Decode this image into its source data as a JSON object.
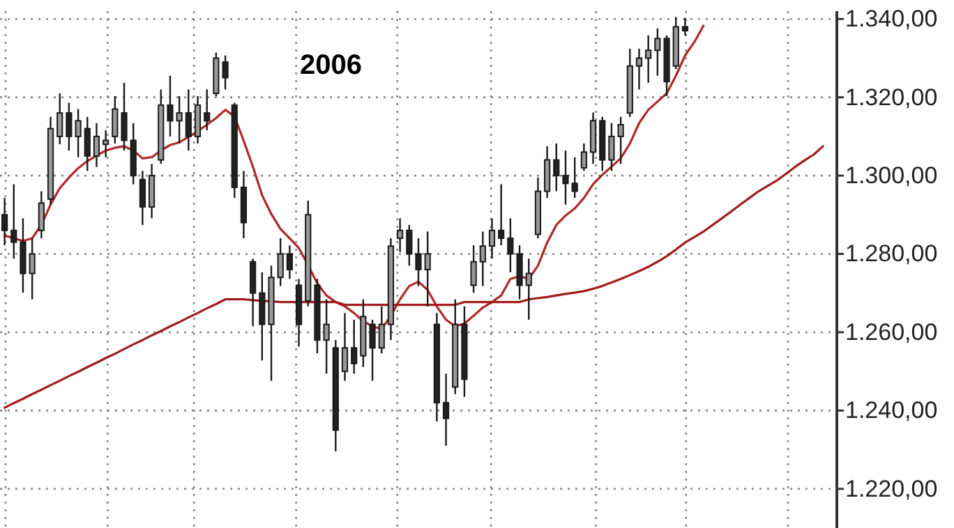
{
  "chart_data": {
    "type": "candlestick",
    "categories": [
      null,
      null,
      null,
      null,
      null,
      null,
      null,
      null,
      null,
      null,
      null,
      null,
      null,
      null,
      null,
      null,
      null,
      null,
      null,
      null,
      null,
      null,
      null,
      null,
      null,
      null,
      null,
      null,
      null,
      null,
      null,
      null,
      null,
      null,
      null,
      null,
      null,
      null,
      null,
      null,
      null,
      null,
      null,
      null,
      null,
      null,
      null,
      null,
      null,
      null,
      null,
      null,
      null,
      null,
      null,
      null,
      null,
      null,
      null,
      null,
      null,
      null,
      null,
      null,
      null,
      null,
      null,
      null,
      null,
      null,
      null,
      null,
      null,
      null,
      null,
      null,
      null,
      null,
      null,
      null,
      null,
      null,
      null,
      null,
      null,
      null,
      null,
      null,
      null,
      null,
      null
    ],
    "ohlc": [
      [
        1290,
        1294.3,
        1282.2,
        1286
      ],
      [
        1286,
        1297.8,
        1278.8,
        1283
      ],
      [
        1283,
        1289.1,
        1270.1,
        1275
      ],
      [
        1275,
        1284,
        1268.4,
        1280
      ],
      [
        1286,
        1296,
        1284,
        1293
      ],
      [
        1294,
        1315,
        1292.6,
        1312
      ],
      [
        1310,
        1321,
        1308,
        1316
      ],
      [
        1316,
        1318.6,
        1306.4,
        1310
      ],
      [
        1310,
        1317,
        1304.7,
        1314
      ],
      [
        1312,
        1315,
        1301.2,
        1305
      ],
      [
        1305,
        1313.4,
        1302.2,
        1310
      ],
      [
        1308,
        1311.6,
        1304.7,
        1309
      ],
      [
        1310,
        1320.3,
        1308.2,
        1317
      ],
      [
        1316,
        1323.7,
        1306.4,
        1309
      ],
      [
        1309,
        1313.4,
        1297.8,
        1300
      ],
      [
        1299,
        1301.2,
        1287.4,
        1292
      ],
      [
        1292,
        1303,
        1289.1,
        1300
      ],
      [
        1304,
        1322,
        1303,
        1318
      ],
      [
        1318,
        1325.5,
        1310,
        1314
      ],
      [
        1314,
        1320.3,
        1308.2,
        1316
      ],
      [
        1316,
        1322,
        1306.4,
        1310
      ],
      [
        1310,
        1320.3,
        1308.2,
        1318
      ],
      [
        1316,
        1322,
        1311.6,
        1314
      ],
      [
        1321,
        1331.4,
        1320.3,
        1330
      ],
      [
        1329,
        1330.7,
        1322,
        1325
      ],
      [
        1318,
        1318.6,
        1294.3,
        1297
      ],
      [
        1297,
        1301.2,
        1284,
        1288
      ],
      [
        1278,
        1278.8,
        1261.5,
        1270
      ],
      [
        1270,
        1275.3,
        1252.8,
        1262
      ],
      [
        1262,
        1277,
        1247.6,
        1274
      ],
      [
        1274,
        1284,
        1271.8,
        1280
      ],
      [
        1280,
        1282.2,
        1273.6,
        1276
      ],
      [
        1272,
        1273.6,
        1256.3,
        1262
      ],
      [
        1268,
        1293.6,
        1266.6,
        1290
      ],
      [
        1272,
        1273.6,
        1254.6,
        1258
      ],
      [
        1258,
        1268.4,
        1249.4,
        1262
      ],
      [
        1256,
        1258,
        1229.6,
        1235
      ],
      [
        1250,
        1264.9,
        1247.6,
        1256
      ],
      [
        1256,
        1263.2,
        1249.4,
        1252
      ],
      [
        1254,
        1268.4,
        1251.1,
        1264
      ],
      [
        1262,
        1263.2,
        1247.6,
        1256
      ],
      [
        1256,
        1266.6,
        1254.6,
        1262
      ],
      [
        1262,
        1284,
        1258,
        1282
      ],
      [
        1284,
        1289.1,
        1280.5,
        1286
      ],
      [
        1286,
        1287.4,
        1277,
        1280
      ],
      [
        1280,
        1284,
        1271.8,
        1276
      ],
      [
        1276,
        1285.7,
        1266.6,
        1280
      ],
      [
        1262,
        1264.9,
        1237.2,
        1242
      ],
      [
        1242,
        1249.4,
        1231,
        1238
      ],
      [
        1246,
        1268.4,
        1244.2,
        1262
      ],
      [
        1262,
        1266.6,
        1243.5,
        1248
      ],
      [
        1272,
        1282.2,
        1270.1,
        1278
      ],
      [
        1278,
        1285.7,
        1271.8,
        1282
      ],
      [
        1282,
        1289.1,
        1278.8,
        1286
      ],
      [
        1286,
        1297.8,
        1282.2,
        1284
      ],
      [
        1284,
        1289.1,
        1275.3,
        1280
      ],
      [
        1280,
        1282.2,
        1268.4,
        1272
      ],
      [
        1272,
        1278.8,
        1263.2,
        1275
      ],
      [
        1285,
        1299.5,
        1284,
        1296
      ],
      [
        1296,
        1307.5,
        1294.3,
        1304
      ],
      [
        1304,
        1308.2,
        1296,
        1300
      ],
      [
        1300,
        1306.4,
        1292.6,
        1298
      ],
      [
        1298,
        1304.7,
        1294.3,
        1296
      ],
      [
        1302,
        1308.2,
        1301.2,
        1306
      ],
      [
        1306,
        1316.1,
        1303,
        1314
      ],
      [
        1314,
        1315,
        1301.2,
        1304
      ],
      [
        1304,
        1313.4,
        1301.2,
        1310
      ],
      [
        1310,
        1315,
        1303,
        1313
      ],
      [
        1316,
        1332.4,
        1315,
        1328
      ],
      [
        1328,
        1332.4,
        1322,
        1330
      ],
      [
        1330,
        1335.8,
        1323.7,
        1332
      ],
      [
        1332,
        1337.6,
        1325.5,
        1335
      ],
      [
        1335,
        1335.8,
        1320.3,
        1324
      ],
      [
        1328,
        1340.5,
        1327.2,
        1338
      ],
      [
        1338,
        1340.3,
        1335.8,
        1337
      ],
      null,
      null,
      null,
      null,
      null,
      null,
      null,
      null,
      null,
      null,
      null,
      null,
      null,
      null,
      null,
      null
    ],
    "series": [
      {
        "type": "line",
        "color": "#b02828",
        "values": [
          1284.7,
          1284,
          1283.3,
          1284,
          1287.4,
          1292.6,
          1296.8,
          1299.5,
          1301.9,
          1303.7,
          1305.1,
          1306.4,
          1307.1,
          1307.5,
          1306.4,
          1304.4,
          1304.7,
          1306.4,
          1307.8,
          1308.5,
          1309.9,
          1311.3,
          1313,
          1314.7,
          1316.8,
          1315.1,
          1308.9,
          1302.3,
          1295,
          1290.2,
          1286.4,
          1284,
          1281.5,
          1277.1,
          1272.5,
          1269.4,
          1267.7,
          1266.6,
          1264.9,
          1262.8,
          1261.5,
          1260.8,
          1264.2,
          1268.4,
          1271.8,
          1272.9,
          1270.8,
          1266.6,
          1263.2,
          1261.5,
          1262.2,
          1264.2,
          1266.3,
          1267.7,
          1269.4,
          1273.6,
          1274.3,
          1273.6,
          1277,
          1282.9,
          1287.4,
          1289.8,
          1291.6,
          1294.3,
          1297.8,
          1300.2,
          1302.3,
          1304.4,
          1308.2,
          1313.4,
          1316.8,
          1318.9,
          1321,
          1325.5,
          1330.7,
          1334.1,
          1338.3,
          null,
          null,
          null,
          null,
          null,
          null,
          null,
          null,
          null,
          null,
          null,
          null,
          null,
          null
        ]
      },
      {
        "type": "line",
        "color": "#a01c1c",
        "values": [
          1240.7,
          1241.9,
          1243,
          1244.2,
          1245.3,
          1246.5,
          1247.6,
          1248.8,
          1249.9,
          1251.1,
          1252.2,
          1253.4,
          1254.5,
          1255.7,
          1256.9,
          1258,
          1259.2,
          1260.3,
          1261.5,
          1262.6,
          1263.8,
          1264.9,
          1266.1,
          1267.2,
          1268.4,
          1268.4,
          1268.4,
          1268.2,
          1268,
          1267.9,
          1267.7,
          1267.7,
          1267.7,
          1267.7,
          1267.7,
          1267.7,
          1267.7,
          1267,
          1267,
          1267,
          1267,
          1267,
          1267,
          1267,
          1267,
          1267,
          1267,
          1267,
          1267,
          1267,
          1267.7,
          1267.7,
          1267.7,
          1267.7,
          1267.7,
          1267.7,
          1267.7,
          1268.4,
          1268.7,
          1269,
          1269.4,
          1269.8,
          1270.1,
          1270.5,
          1271.1,
          1271.8,
          1272.7,
          1273.6,
          1274.6,
          1275.6,
          1276.7,
          1278,
          1279.4,
          1281.1,
          1282.9,
          1284.3,
          1285.7,
          1287.4,
          1289.1,
          1290.8,
          1292.6,
          1294.3,
          1296,
          1297.4,
          1298.8,
          1300.5,
          1302.3,
          1303.9,
          1305.4,
          1307.5,
          null
        ]
      }
    ],
    "ylim": [
      1210,
      1342
    ],
    "yticks": [
      {
        "value": 1220,
        "label": "1.220,00"
      },
      {
        "value": 1240,
        "label": "1.240,00"
      },
      {
        "value": 1260,
        "label": "1.260,00"
      },
      {
        "value": 1280,
        "label": "1.280,00"
      },
      {
        "value": 1300,
        "label": "1.300,00"
      },
      {
        "value": 1320,
        "label": "1.320,00"
      },
      {
        "value": 1340,
        "label": "1.340,00"
      }
    ],
    "tick_labels": "y",
    "grid": true,
    "annotations": [
      "2006"
    ]
  }
}
